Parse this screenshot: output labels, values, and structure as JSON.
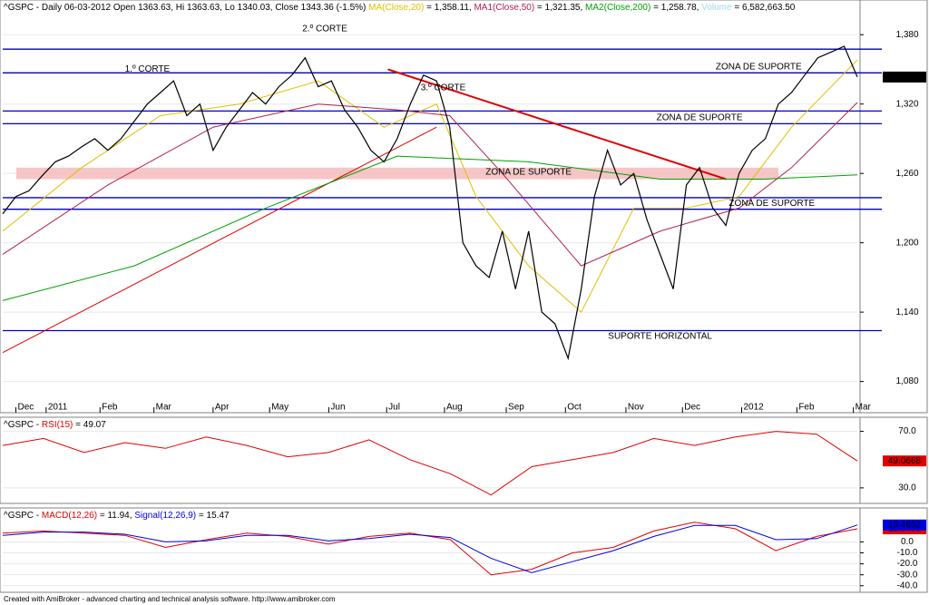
{
  "chart_data": [
    {
      "type": "line",
      "header": [
        {
          "text": "^GSPC - Daily 06-03-2012 Open 1363.63, Hi 1363.63, Lo 1340.03, Close 1343.36 (-1.5%) ",
          "color": "#000000"
        },
        {
          "text": "MA(Close,20)",
          "color": "#e0c000"
        },
        {
          "text": " = 1,358.11, ",
          "color": "#000000"
        },
        {
          "text": "MA1(Close,50)",
          "color": "#b02050"
        },
        {
          "text": " = 1,321.35, ",
          "color": "#000000"
        },
        {
          "text": "MA2(Close,200)",
          "color": "#00a000"
        },
        {
          "text": " = 1,258.78, ",
          "color": "#000000"
        },
        {
          "text": "Volume",
          "color": "#a0d8f0"
        },
        {
          "text": " = 6,582,663.50",
          "color": "#000000"
        }
      ],
      "color": "#000000",
      "values": [
        1225,
        1240,
        1245,
        1258,
        1270,
        1275,
        1283,
        1290,
        1280,
        1290,
        1305,
        1320,
        1330,
        1340,
        1310,
        1320,
        1280,
        1300,
        1315,
        1330,
        1320,
        1335,
        1345,
        1360,
        1335,
        1340,
        1315,
        1300,
        1280,
        1270,
        1290,
        1320,
        1345,
        1340,
        1300,
        1200,
        1180,
        1170,
        1210,
        1160,
        1210,
        1140,
        1130,
        1100,
        1160,
        1240,
        1280,
        1250,
        1260,
        1220,
        1190,
        1160,
        1250,
        1265,
        1230,
        1215,
        1260,
        1280,
        1290,
        1320,
        1330,
        1345,
        1360,
        1365,
        1370,
        1343.36
      ],
      "last_label": "1,343.36",
      "xlim": [
        0,
        65
      ],
      "xticks": [
        {
          "value": 1,
          "label": "Dec"
        },
        {
          "value": 3.3,
          "label": "2011"
        },
        {
          "value": 7.4,
          "label": "Feb"
        },
        {
          "value": 11.5,
          "label": "Mar"
        },
        {
          "value": 16,
          "label": "Apr"
        },
        {
          "value": 20.3,
          "label": "May"
        },
        {
          "value": 24.8,
          "label": "Jun"
        },
        {
          "value": 29.2,
          "label": "Jul"
        },
        {
          "value": 33.6,
          "label": "Aug"
        },
        {
          "value": 38.3,
          "label": "Sep"
        },
        {
          "value": 42.8,
          "label": "Oct"
        },
        {
          "value": 47.4,
          "label": "Nov"
        },
        {
          "value": 51.7,
          "label": "Dec"
        },
        {
          "value": 56.2,
          "label": "2012"
        },
        {
          "value": 60.4,
          "label": "Feb"
        },
        {
          "value": 64.7,
          "label": "Mar"
        }
      ],
      "ylim": [
        1053,
        1410
      ],
      "yticks": [
        {
          "value": 1080,
          "label": "1,080"
        },
        {
          "value": 1140,
          "label": "1,140"
        },
        {
          "value": 1200,
          "label": "1,200"
        },
        {
          "value": 1260,
          "label": "1,260"
        },
        {
          "value": 1320,
          "label": "1,320"
        },
        {
          "value": 1380,
          "label": "1,380"
        }
      ],
      "series": [
        {
          "name": "MA(Close,20)",
          "color": "#e0c000",
          "x": [
            0,
            6,
            12,
            18,
            24,
            29,
            33,
            36,
            40,
            44,
            48,
            52,
            56,
            60,
            65
          ],
          "values": [
            1210,
            1265,
            1310,
            1320,
            1340,
            1300,
            1320,
            1240,
            1180,
            1140,
            1230,
            1230,
            1240,
            1300,
            1358.11
          ]
        },
        {
          "name": "MA1(Close,50)",
          "color": "#b02050",
          "x": [
            0,
            8,
            16,
            24,
            30,
            34,
            38,
            44,
            50,
            56,
            60,
            65
          ],
          "values": [
            1190,
            1250,
            1300,
            1320,
            1315,
            1310,
            1260,
            1180,
            1210,
            1230,
            1265,
            1321.35
          ]
        },
        {
          "name": "MA2(Close,200)",
          "color": "#00a000",
          "x": [
            0,
            10,
            20,
            30,
            40,
            50,
            58,
            65
          ],
          "values": [
            1150,
            1180,
            1230,
            1275,
            1270,
            1255,
            1255,
            1258.78
          ]
        }
      ],
      "hlines": [
        1367.5,
        1347,
        1314,
        1303,
        1239,
        1229,
        1124
      ],
      "zone": [
        1255,
        1265
      ],
      "trendlines": [
        {
          "x": [
            29.3,
            55
          ],
          "y": [
            1350,
            1255
          ]
        },
        {
          "x": [
            0,
            33
          ],
          "y": [
            1105,
            1300
          ]
        }
      ],
      "annotations": [
        {
          "text": "1.º CORTE",
          "x": 11,
          "y": 1350,
          "color": "#e00000"
        },
        {
          "text": "2.º CORTE",
          "x": 24.5,
          "y": 1385,
          "color": "#e00000"
        },
        {
          "text": "3.º CORTE",
          "x": 33.5,
          "y": 1334,
          "color": "#e00000"
        },
        {
          "text": "ZONA DE SUPORTE",
          "x": 57.5,
          "y": 1352,
          "color": "#0000c0"
        },
        {
          "text": "ZONA DE SUPORTE",
          "x": 53,
          "y": 1308,
          "color": "#0000c0"
        },
        {
          "text": "ZONA DE SUPORTE",
          "x": 40,
          "y": 1261,
          "color": "#0000c0"
        },
        {
          "text": "ZONA DE SUPORTE",
          "x": 58.5,
          "y": 1234,
          "color": "#0000c0"
        },
        {
          "text": "SUPORTE HORIZONTAL",
          "x": 50,
          "y": 1119,
          "color": "#0000c0"
        }
      ]
    },
    {
      "type": "line",
      "header": [
        {
          "text": "^GSPC - ",
          "color": "#000000"
        },
        {
          "text": "RSI(15)",
          "color": "#e00000"
        },
        {
          "text": " = 49.07",
          "color": "#000000"
        }
      ],
      "color": "#e00000",
      "values": [
        60,
        65,
        55,
        62,
        58,
        66,
        60,
        52,
        55,
        64,
        50,
        40,
        25,
        45,
        50,
        55,
        65,
        60,
        66,
        70,
        68,
        49.0668
      ],
      "xlim": [
        0,
        21
      ],
      "ylim": [
        19,
        80
      ],
      "yticks": [
        {
          "value": 70,
          "label": "70.0"
        },
        {
          "value": 30,
          "label": "30.0"
        }
      ]
    },
    {
      "type": "line",
      "header": [
        {
          "text": "^GSPC - ",
          "color": "#000000"
        },
        {
          "text": "MACD(12,26)",
          "color": "#e00000"
        },
        {
          "text": " = 11.94, ",
          "color": "#000000"
        },
        {
          "text": "Signal(12,26,9)",
          "color": "#0000e0"
        },
        {
          "text": " = 15.47",
          "color": "#000000"
        }
      ],
      "xlim": [
        0,
        21
      ],
      "ylim": [
        -46,
        31
      ],
      "yticks": [
        {
          "value": 0,
          "label": "0.0"
        },
        {
          "value": -10,
          "label": "-10.0"
        },
        {
          "value": -20,
          "label": "-20.0"
        },
        {
          "value": -30,
          "label": "-30.0"
        },
        {
          "value": -40,
          "label": "-40.0"
        }
      ],
      "series": [
        {
          "name": "MACD(12,26)",
          "color": "#e00000",
          "values": [
            8,
            10,
            8,
            6,
            -5,
            2,
            8,
            5,
            -2,
            5,
            8,
            2,
            -30,
            -25,
            -10,
            -5,
            10,
            18,
            12,
            -8,
            5,
            11.9406
          ]
        },
        {
          "name": "Signal(12,26,9)",
          "color": "#0000e0",
          "values": [
            6,
            9,
            9,
            7,
            0,
            1,
            6,
            6,
            1,
            3,
            7,
            4,
            -15,
            -28,
            -18,
            -8,
            5,
            15,
            15,
            2,
            3,
            15.4652
          ]
        }
      ]
    }
  ],
  "footer": "Created with AmiBroker - advanced charting and technical analysis software. http://www.amibroker.com"
}
